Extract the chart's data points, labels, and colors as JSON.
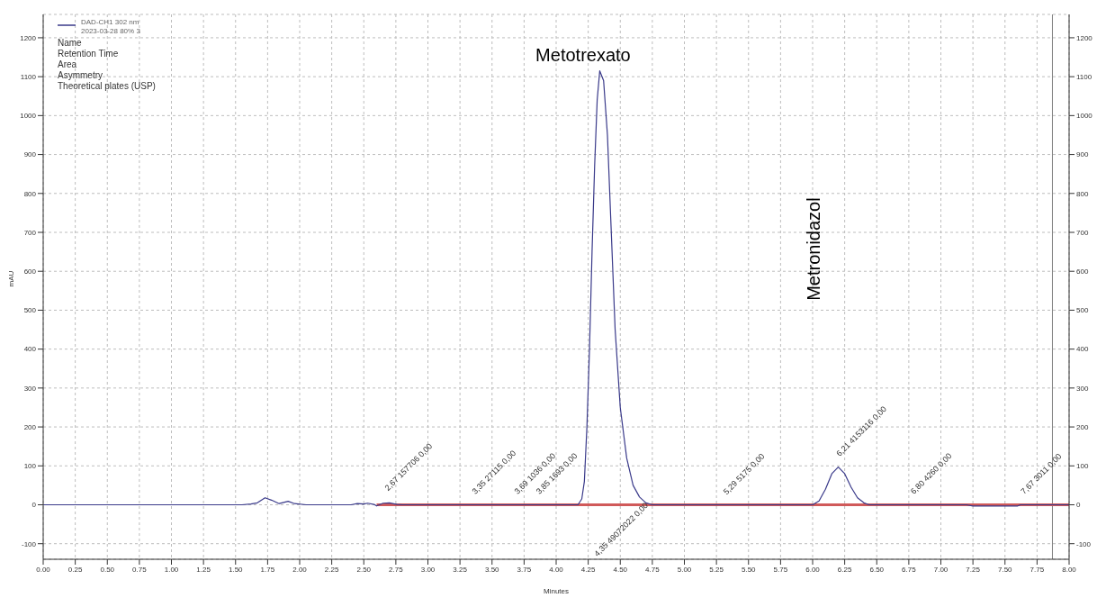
{
  "chart_data": {
    "type": "line",
    "xlabel": "Minutes",
    "ylabel": "mAU",
    "legend": "top left",
    "grid": true,
    "marker": "none",
    "line_style": "solid",
    "xlim": [
      0,
      8
    ],
    "ylim": [
      -140,
      1260
    ],
    "y2lim": [
      -140,
      1260
    ],
    "xticks": [
      {
        "value": 0,
        "label": "0.00"
      },
      0.25,
      {
        "value": 0.5,
        "label": "0.50"
      },
      0.75,
      {
        "value": 1,
        "label": "1.00"
      },
      1.25,
      {
        "value": 1.5,
        "label": "1.50"
      },
      1.75,
      {
        "value": 2,
        "label": "2.00"
      },
      2.25,
      {
        "value": 2.5,
        "label": "2.50"
      },
      2.75,
      {
        "value": 3,
        "label": "3.00"
      },
      3.25,
      {
        "value": 3.5,
        "label": "3.50"
      },
      3.75,
      {
        "value": 4,
        "label": "4.00"
      },
      4.25,
      {
        "value": 4.5,
        "label": "4.50"
      },
      4.75,
      {
        "value": 5,
        "label": "5.00"
      },
      5.25,
      {
        "value": 5.5,
        "label": "5.50"
      },
      5.75,
      {
        "value": 6,
        "label": "6.00"
      },
      6.25,
      {
        "value": 6.5,
        "label": "6.50"
      },
      6.75,
      {
        "value": 7,
        "label": "7.00"
      },
      7.25,
      {
        "value": 7.5,
        "label": "7.50"
      },
      7.75,
      {
        "value": 8,
        "label": "8.00"
      }
    ],
    "yticks": [
      -100,
      0,
      100,
      200,
      300,
      400,
      500,
      600,
      700,
      800,
      900,
      1000,
      1100,
      1200
    ],
    "y2ticks": [
      -100,
      0,
      100,
      200,
      300,
      400,
      500,
      600,
      700,
      800,
      900,
      1000,
      1100,
      1200
    ],
    "series": [
      {
        "color": "#d05a5a",
        "x": [
          2.6,
          8
        ],
        "values": [
          0,
          0
        ]
      },
      {
        "name": "DAD-CH1 302 nm 2023-03-28 80% 3",
        "color": "#3a3a8a",
        "x": [
          0,
          1.55,
          1.62,
          1.67,
          1.73,
          1.78,
          1.84,
          1.91,
          1.96,
          2.05,
          2.4,
          2.45,
          2.5,
          2.53,
          2.58,
          2.6,
          2.65,
          2.7,
          2.76,
          2.8,
          4.17,
          4.2,
          4.22,
          4.24,
          4.26,
          4.28,
          4.3,
          4.32,
          4.34,
          4.37,
          4.4,
          4.43,
          4.46,
          4.5,
          4.55,
          4.6,
          4.65,
          4.7,
          4.75,
          6,
          6.05,
          6.1,
          6.15,
          6.2,
          6.25,
          6.3,
          6.35,
          6.4,
          6.44,
          7.2,
          7.25,
          7.6,
          7.62,
          8
        ],
        "values": [
          0,
          0,
          2,
          5,
          18,
          12,
          3,
          9,
          3,
          0,
          0,
          3,
          2,
          4,
          1,
          -3,
          4,
          5,
          1,
          0,
          0,
          15,
          60,
          200,
          400,
          650,
          870,
          1040,
          1115,
          1090,
          950,
          700,
          450,
          250,
          120,
          50,
          20,
          5,
          0,
          0,
          10,
          40,
          80,
          97,
          80,
          45,
          18,
          5,
          0,
          0,
          -3,
          -3,
          0,
          0
        ]
      }
    ],
    "ref_lines": [
      {
        "axis": "x",
        "value": 7.87,
        "color": "#808080"
      }
    ],
    "annotations": [
      "Name",
      "Retention Time",
      "Area",
      "Asymmetry",
      "Theoretical plates (USP)",
      "Metotrexato",
      "Metronidazol",
      "2,67 157706 0,00",
      "3,35 27115 0,00",
      "3,69 1036 0,00",
      "3,85 1693 0,00",
      "4,35 49072022 0,00",
      "5,29 5175 0,00",
      "6,21 4153116 0,00",
      "6,80 4260 0,00",
      "7,67 3011 0,00"
    ]
  }
}
